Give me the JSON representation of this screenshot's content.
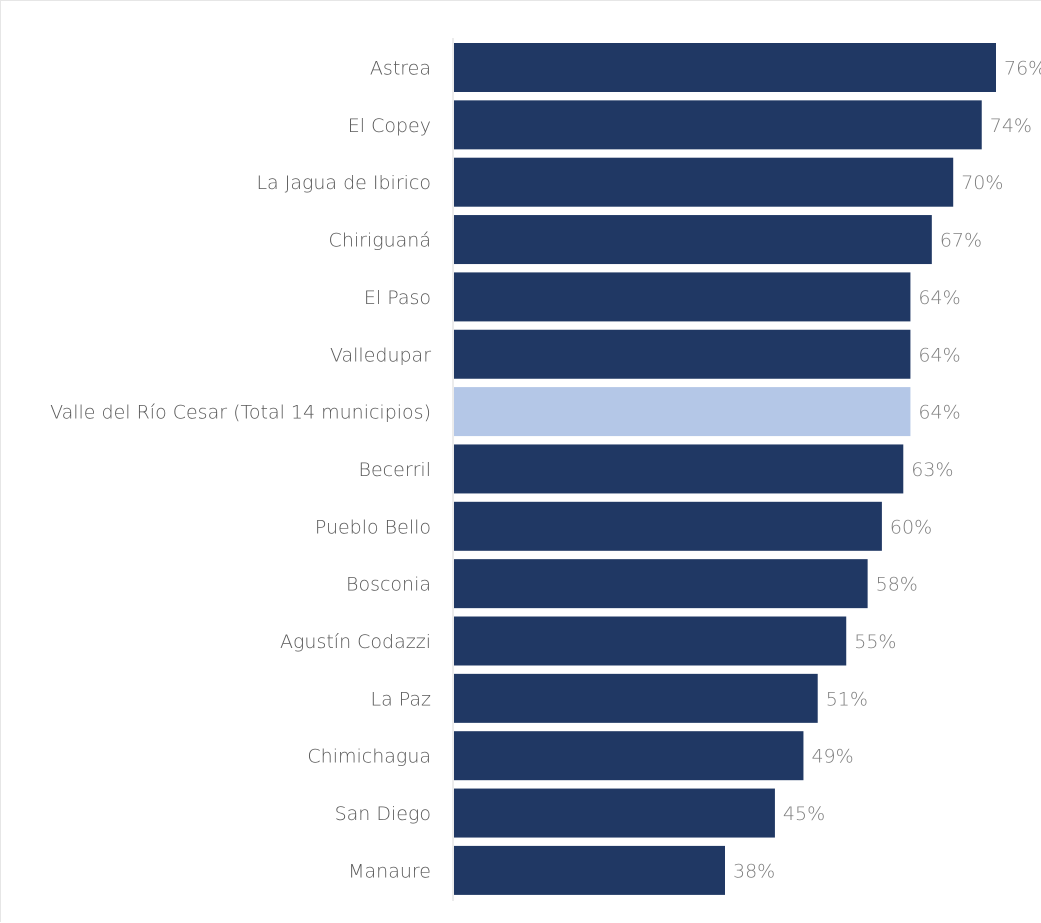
{
  "chart_data": {
    "type": "bar",
    "orientation": "horizontal",
    "title": "",
    "xlabel": "",
    "ylabel": "",
    "xlim": [
      0,
      76
    ],
    "grid": false,
    "legend": "none",
    "value_suffix": "%",
    "categories": [
      "Astrea",
      "El Copey",
      "La Jagua de Ibirico",
      "Chiriguaná",
      "El Paso",
      "Valledupar",
      "Valle del Río Cesar (Total 14 municipios)",
      "Becerril",
      "Pueblo Bello",
      "Bosconia",
      "Agustín Codazzi",
      "La Paz",
      "Chimichagua",
      "San Diego",
      "Manaure"
    ],
    "values": [
      76,
      74,
      70,
      67,
      64,
      64,
      64,
      63,
      60,
      58,
      55,
      51,
      49,
      45,
      38
    ],
    "value_labels": [
      "76%",
      "74%",
      "70%",
      "67%",
      "64%",
      "64%",
      "64%",
      "63%",
      "60%",
      "58%",
      "55%",
      "51%",
      "49%",
      "45%",
      "38%"
    ],
    "highlight_category": "Valle del Río Cesar (Total 14 municipios)",
    "colors": {
      "bar": "#203864",
      "highlight": "#b4c7e7"
    }
  }
}
